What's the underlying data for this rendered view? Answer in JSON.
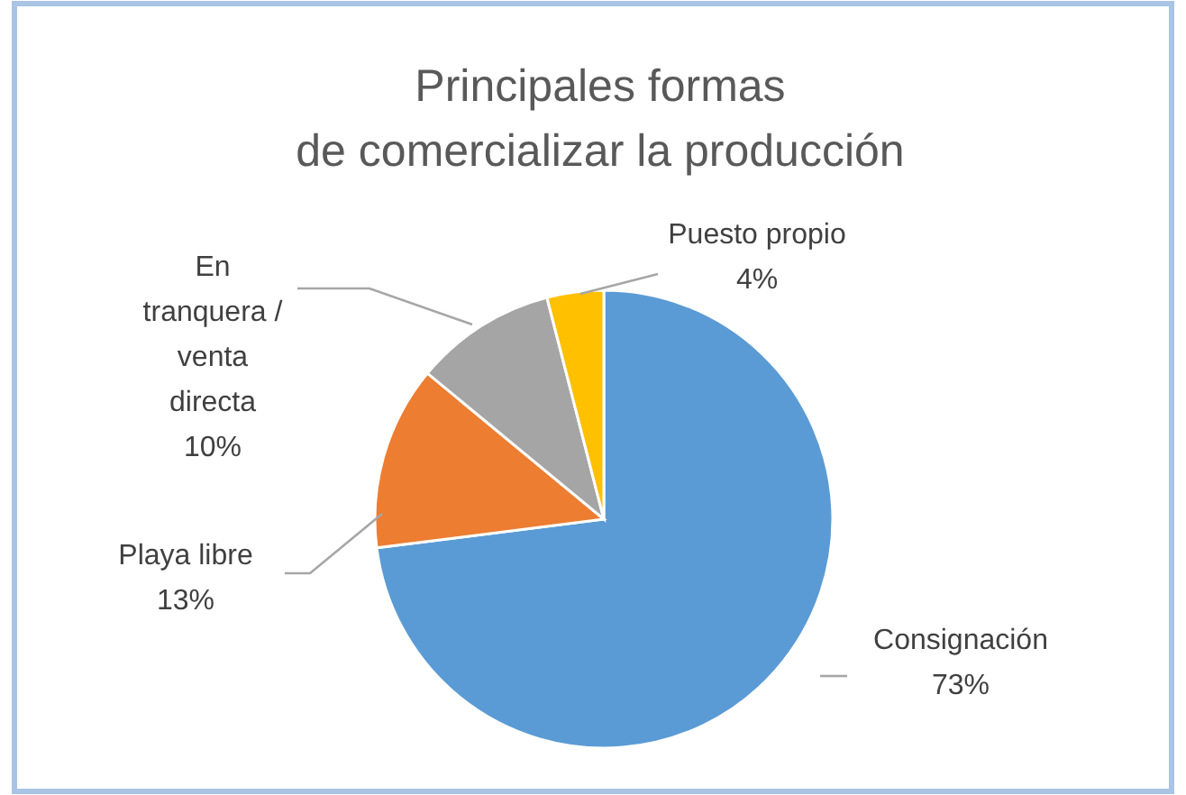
{
  "chart_data": {
    "type": "pie",
    "title": "Principales formas\nde comercializar la producción",
    "categories": [
      "Consignación",
      "Playa libre",
      "En tranquera / venta directa",
      "Puesto propio"
    ],
    "values": [
      73,
      13,
      10,
      4
    ],
    "colors": [
      "#5b9bd5",
      "#ed7d31",
      "#a5a5a5",
      "#ffc000"
    ],
    "value_labels": [
      "73%",
      "13%",
      "10%",
      "4%"
    ],
    "legend": false
  }
}
